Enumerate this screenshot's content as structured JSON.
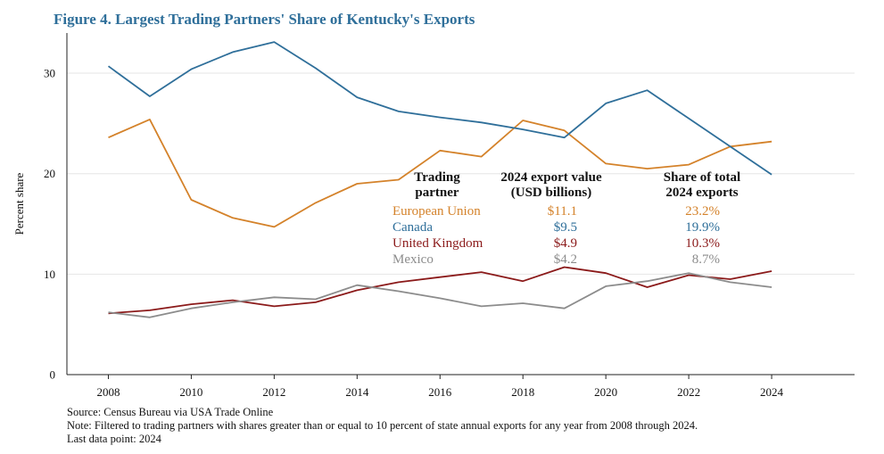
{
  "chart_data": {
    "type": "line",
    "title": "Figure 4. Largest Trading Partners' Share of Kentucky's Exports",
    "ylabel": "Percent share",
    "xlabel": "",
    "ylim": [
      0,
      34
    ],
    "xlim": [
      2007,
      2026
    ],
    "yticks": [
      0,
      10,
      20,
      30
    ],
    "xticks": [
      2008,
      2010,
      2012,
      2014,
      2016,
      2018,
      2020,
      2022,
      2024
    ],
    "grid": true,
    "x": [
      2008,
      2009,
      2010,
      2011,
      2012,
      2013,
      2014,
      2015,
      2016,
      2017,
      2018,
      2019,
      2020,
      2021,
      2022,
      2023,
      2024
    ],
    "series": [
      {
        "name": "European Union",
        "color": "#d4822a",
        "values": [
          23.6,
          25.4,
          17.4,
          15.6,
          14.7,
          17.1,
          19.0,
          19.4,
          22.3,
          21.7,
          25.3,
          24.3,
          21.0,
          20.5,
          20.9,
          22.7,
          23.2
        ]
      },
      {
        "name": "Canada",
        "color": "#2f6f9a",
        "values": [
          30.7,
          27.7,
          30.4,
          32.1,
          33.1,
          30.5,
          27.6,
          26.2,
          25.6,
          25.1,
          24.4,
          23.6,
          27.0,
          28.3,
          25.5,
          22.7,
          19.9
        ]
      },
      {
        "name": "United Kingdom",
        "color": "#8b1a1a",
        "values": [
          6.1,
          6.4,
          7.0,
          7.4,
          6.8,
          7.2,
          8.4,
          9.2,
          9.7,
          10.2,
          9.3,
          10.7,
          10.1,
          8.7,
          9.9,
          9.5,
          10.3
        ]
      },
      {
        "name": "Mexico",
        "color": "#8c8c8c",
        "values": [
          6.2,
          5.7,
          6.6,
          7.2,
          7.7,
          7.5,
          8.9,
          8.3,
          7.6,
          6.8,
          7.1,
          6.6,
          8.8,
          9.3,
          10.1,
          9.2,
          8.7
        ]
      }
    ],
    "table": {
      "headers": [
        [
          "Trading",
          "partner"
        ],
        [
          "2024 export value",
          "(USD billions)"
        ],
        [
          "Share of total",
          "2024 exports"
        ]
      ],
      "rows": [
        {
          "partner": "European Union",
          "value": "$11.1",
          "share": "23.2%",
          "color": "#d4822a"
        },
        {
          "partner": "Canada",
          "value": "$9.5",
          "share": "19.9%",
          "color": "#2f6f9a"
        },
        {
          "partner": "United Kingdom",
          "value": "$4.9",
          "share": "10.3%",
          "color": "#8b1a1a"
        },
        {
          "partner": "Mexico",
          "value": "$4.2",
          "share": "8.7%",
          "color": "#8c8c8c"
        }
      ]
    }
  },
  "notes": {
    "source": "Source: Census Bureau via USA Trade Online",
    "note": "Note: Filtered to trading partners with shares greater than or equal to 10 percent of state annual exports for any year from 2008 through 2024.",
    "last_point": "Last data point: 2024"
  }
}
